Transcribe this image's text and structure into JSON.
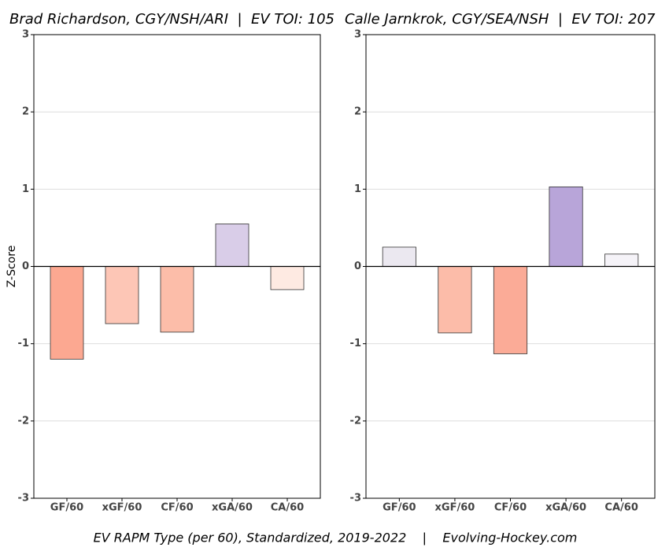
{
  "chart_data": [
    {
      "type": "bar",
      "title": "Brad Richardson, CGY/NSH/ARI  |  EV TOI: 105",
      "y_label": "Z-Score",
      "categories": [
        "GF/60",
        "xGF/60",
        "CF/60",
        "xGA/60",
        "CA/60"
      ],
      "values": [
        -1.2,
        -0.74,
        -0.85,
        0.55,
        -0.3
      ],
      "colors": [
        "#fca891",
        "#fdc6b6",
        "#fcbda9",
        "#d9cde8",
        "#feeae2"
      ],
      "ylim": [
        -3,
        3
      ],
      "yticks": [
        -3,
        -2,
        -1,
        0,
        1,
        2,
        3
      ],
      "grid": true
    },
    {
      "type": "bar",
      "title": "Calle Jarnkrok, CGY/SEA/NSH  |  EV TOI: 207",
      "categories": [
        "GF/60",
        "xGF/60",
        "CF/60",
        "xGA/60",
        "CA/60"
      ],
      "values": [
        0.25,
        -0.86,
        -1.13,
        1.03,
        0.16
      ],
      "colors": [
        "#ebe8f0",
        "#fcbca9",
        "#fbab97",
        "#b8a5d9",
        "#f5f3f8"
      ],
      "ylim": [
        -3,
        3
      ],
      "yticks": [
        -3,
        -2,
        -1,
        0,
        1,
        2,
        3
      ],
      "grid": true
    }
  ],
  "caption": "EV RAPM Type (per 60), Standardized, 2019-2022    |    Evolving-Hockey.com"
}
